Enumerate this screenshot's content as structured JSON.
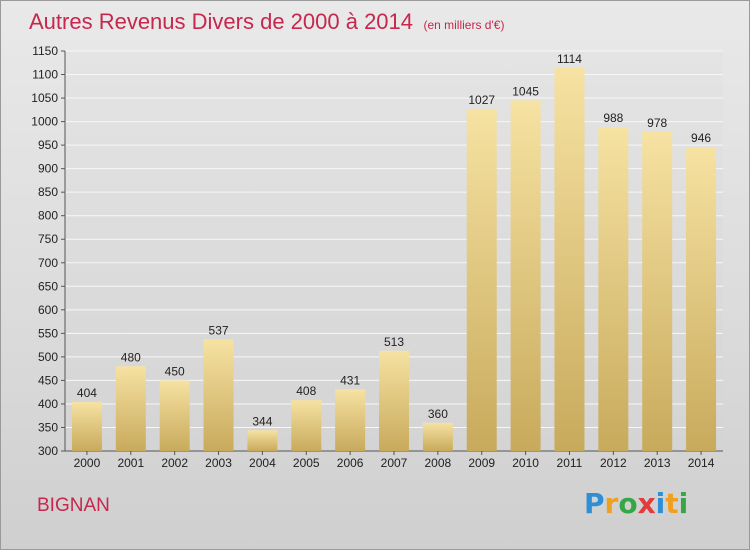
{
  "chart_data": {
    "type": "bar",
    "title": "Autres Revenus Divers de 2000 à 2014",
    "subtitle": "(en milliers d'€)",
    "categories": [
      "2000",
      "2001",
      "2002",
      "2003",
      "2004",
      "2005",
      "2006",
      "2007",
      "2008",
      "2009",
      "2010",
      "2011",
      "2012",
      "2013",
      "2014"
    ],
    "values": [
      404,
      480,
      450,
      537,
      344,
      408,
      431,
      513,
      360,
      1027,
      1045,
      1114,
      988,
      978,
      946
    ],
    "ylim": [
      300,
      1150
    ],
    "yticks": [
      300,
      350,
      400,
      450,
      500,
      550,
      600,
      650,
      700,
      750,
      800,
      850,
      900,
      950,
      1000,
      1050,
      1100,
      1150
    ],
    "grid": true,
    "bar_color_light": "#f6e2a2",
    "bar_color_dark": "#c8aa5c"
  },
  "place": "BIGNAN",
  "brand": {
    "letters": [
      "P",
      "r",
      "o",
      "x",
      "i",
      "t",
      "i"
    ],
    "colors": [
      "#2e8fd6",
      "#f0a020",
      "#35a845",
      "#e23b3b",
      "#2e8fd6",
      "#f0a020",
      "#35a845"
    ]
  }
}
